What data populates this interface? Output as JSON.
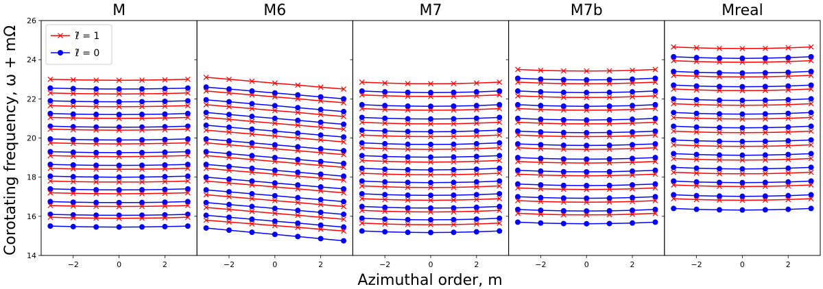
{
  "figure": {
    "xlabel": "Azimuthal order, m",
    "ylabel": "Corotating frequency, ω + mΩ"
  },
  "chart_data": {
    "type": "line",
    "ylim": [
      14,
      26
    ],
    "xlim": [
      -3.4,
      3.4
    ],
    "yticks": [
      14,
      16,
      18,
      20,
      22,
      24,
      26
    ],
    "xticks": [
      -2,
      0,
      2
    ],
    "x": [
      -3,
      -2,
      -1,
      0,
      1,
      2,
      3
    ],
    "legend": {
      "position": "top-left",
      "entries": [
        {
          "name": "ℓ̃ = 1",
          "color": "#ff0000",
          "marker": "x"
        },
        {
          "name": "ℓ̃ = 0",
          "color": "#0000ff",
          "marker": "o"
        }
      ]
    },
    "panels": [
      {
        "title": "M",
        "series": [
          {
            "l": 1,
            "start": 23.0,
            "end": 23.0,
            "curve": -0.05
          },
          {
            "l": 0,
            "start": 22.55,
            "end": 22.55,
            "curve": -0.05
          },
          {
            "l": 1,
            "start": 22.3,
            "end": 22.3,
            "curve": -0.05
          },
          {
            "l": 0,
            "start": 21.9,
            "end": 21.9,
            "curve": -0.05
          },
          {
            "l": 1,
            "start": 21.65,
            "end": 21.65,
            "curve": -0.05
          },
          {
            "l": 0,
            "start": 21.25,
            "end": 21.25,
            "curve": -0.05
          },
          {
            "l": 1,
            "start": 21.05,
            "end": 21.05,
            "curve": -0.05
          },
          {
            "l": 0,
            "start": 20.6,
            "end": 20.6,
            "curve": -0.05
          },
          {
            "l": 1,
            "start": 20.45,
            "end": 20.45,
            "curve": -0.05
          },
          {
            "l": 0,
            "start": 19.95,
            "end": 19.95,
            "curve": -0.05
          },
          {
            "l": 1,
            "start": 19.75,
            "end": 19.75,
            "curve": -0.05
          },
          {
            "l": 0,
            "start": 19.3,
            "end": 19.3,
            "curve": -0.05
          },
          {
            "l": 1,
            "start": 19.1,
            "end": 19.1,
            "curve": -0.05
          },
          {
            "l": 0,
            "start": 18.65,
            "end": 18.65,
            "curve": -0.05
          },
          {
            "l": 1,
            "start": 18.45,
            "end": 18.45,
            "curve": -0.05
          },
          {
            "l": 0,
            "start": 18.05,
            "end": 18.05,
            "curve": -0.05
          },
          {
            "l": 1,
            "start": 17.8,
            "end": 17.8,
            "curve": -0.05
          },
          {
            "l": 0,
            "start": 17.4,
            "end": 17.4,
            "curve": -0.05
          },
          {
            "l": 1,
            "start": 17.2,
            "end": 17.2,
            "curve": -0.05
          },
          {
            "l": 0,
            "start": 16.75,
            "end": 16.75,
            "curve": -0.05
          },
          {
            "l": 1,
            "start": 16.55,
            "end": 16.55,
            "curve": -0.05
          },
          {
            "l": 0,
            "start": 16.1,
            "end": 16.1,
            "curve": -0.05
          },
          {
            "l": 1,
            "start": 15.95,
            "end": 15.95,
            "curve": -0.05
          },
          {
            "l": 0,
            "start": 15.5,
            "end": 15.5,
            "curve": -0.05
          }
        ]
      },
      {
        "title": "M6",
        "series": [
          {
            "l": 1,
            "start": 23.1,
            "end": 22.5,
            "curve": 0
          },
          {
            "l": 0,
            "start": 22.6,
            "end": 22.0,
            "curve": 0
          },
          {
            "l": 1,
            "start": 22.4,
            "end": 21.8,
            "curve": 0
          },
          {
            "l": 0,
            "start": 21.95,
            "end": 21.35,
            "curve": 0
          },
          {
            "l": 1,
            "start": 21.7,
            "end": 21.1,
            "curve": 0
          },
          {
            "l": 0,
            "start": 21.3,
            "end": 20.7,
            "curve": 0
          },
          {
            "l": 1,
            "start": 21.05,
            "end": 20.45,
            "curve": 0
          },
          {
            "l": 0,
            "start": 20.65,
            "end": 20.05,
            "curve": 0
          },
          {
            "l": 1,
            "start": 20.4,
            "end": 19.8,
            "curve": 0
          },
          {
            "l": 0,
            "start": 19.95,
            "end": 19.35,
            "curve": 0
          },
          {
            "l": 1,
            "start": 19.75,
            "end": 19.15,
            "curve": 0
          },
          {
            "l": 0,
            "start": 19.3,
            "end": 18.7,
            "curve": 0
          },
          {
            "l": 1,
            "start": 19.1,
            "end": 18.5,
            "curve": 0
          },
          {
            "l": 0,
            "start": 18.65,
            "end": 18.05,
            "curve": 0
          },
          {
            "l": 1,
            "start": 18.45,
            "end": 17.85,
            "curve": 0
          },
          {
            "l": 0,
            "start": 18.0,
            "end": 17.4,
            "curve": 0
          },
          {
            "l": 1,
            "start": 17.8,
            "end": 17.2,
            "curve": 0
          },
          {
            "l": 0,
            "start": 17.35,
            "end": 16.75,
            "curve": 0
          },
          {
            "l": 1,
            "start": 17.1,
            "end": 16.5,
            "curve": 0
          },
          {
            "l": 0,
            "start": 16.7,
            "end": 16.1,
            "curve": 0
          },
          {
            "l": 1,
            "start": 16.45,
            "end": 15.85,
            "curve": 0
          },
          {
            "l": 0,
            "start": 16.05,
            "end": 15.45,
            "curve": 0
          },
          {
            "l": 1,
            "start": 15.8,
            "end": 15.25,
            "curve": 0
          },
          {
            "l": 0,
            "start": 15.4,
            "end": 14.75,
            "curve": 0
          }
        ]
      },
      {
        "title": "M7",
        "series": [
          {
            "l": 1,
            "start": 22.85,
            "end": 22.85,
            "curve": -0.08
          },
          {
            "l": 0,
            "start": 22.4,
            "end": 22.4,
            "curve": -0.08
          },
          {
            "l": 1,
            "start": 22.2,
            "end": 22.2,
            "curve": -0.08
          },
          {
            "l": 0,
            "start": 21.7,
            "end": 21.7,
            "curve": -0.08
          },
          {
            "l": 1,
            "start": 21.5,
            "end": 21.5,
            "curve": -0.08
          },
          {
            "l": 0,
            "start": 21.05,
            "end": 21.05,
            "curve": -0.08
          },
          {
            "l": 1,
            "start": 20.8,
            "end": 20.8,
            "curve": -0.08
          },
          {
            "l": 0,
            "start": 20.4,
            "end": 20.4,
            "curve": -0.08
          },
          {
            "l": 1,
            "start": 20.15,
            "end": 20.15,
            "curve": -0.08
          },
          {
            "l": 0,
            "start": 19.75,
            "end": 19.75,
            "curve": -0.08
          },
          {
            "l": 1,
            "start": 19.5,
            "end": 19.5,
            "curve": -0.08
          },
          {
            "l": 0,
            "start": 19.1,
            "end": 19.1,
            "curve": -0.08
          },
          {
            "l": 1,
            "start": 18.85,
            "end": 18.85,
            "curve": -0.08
          },
          {
            "l": 0,
            "start": 18.45,
            "end": 18.45,
            "curve": -0.08
          },
          {
            "l": 1,
            "start": 18.2,
            "end": 18.2,
            "curve": -0.08
          },
          {
            "l": 0,
            "start": 17.8,
            "end": 17.8,
            "curve": -0.08
          },
          {
            "l": 1,
            "start": 17.55,
            "end": 17.55,
            "curve": -0.08
          },
          {
            "l": 0,
            "start": 17.15,
            "end": 17.15,
            "curve": -0.08
          },
          {
            "l": 1,
            "start": 16.9,
            "end": 16.9,
            "curve": -0.08
          },
          {
            "l": 0,
            "start": 16.5,
            "end": 16.5,
            "curve": -0.08
          },
          {
            "l": 1,
            "start": 16.3,
            "end": 16.3,
            "curve": -0.08
          },
          {
            "l": 0,
            "start": 15.9,
            "end": 15.9,
            "curve": -0.08
          },
          {
            "l": 1,
            "start": 15.65,
            "end": 15.65,
            "curve": -0.08
          },
          {
            "l": 0,
            "start": 15.25,
            "end": 15.25,
            "curve": -0.08
          }
        ]
      },
      {
        "title": "M7b",
        "series": [
          {
            "l": 1,
            "start": 23.5,
            "end": 23.5,
            "curve": -0.08
          },
          {
            "l": 0,
            "start": 23.05,
            "end": 23.05,
            "curve": -0.08
          },
          {
            "l": 1,
            "start": 22.85,
            "end": 22.85,
            "curve": -0.08
          },
          {
            "l": 0,
            "start": 22.4,
            "end": 22.4,
            "curve": -0.08
          },
          {
            "l": 1,
            "start": 22.15,
            "end": 22.15,
            "curve": -0.08
          },
          {
            "l": 0,
            "start": 21.7,
            "end": 21.7,
            "curve": -0.08
          },
          {
            "l": 1,
            "start": 21.5,
            "end": 21.5,
            "curve": -0.08
          },
          {
            "l": 0,
            "start": 21.0,
            "end": 21.0,
            "curve": -0.08
          },
          {
            "l": 1,
            "start": 20.8,
            "end": 20.8,
            "curve": -0.08
          },
          {
            "l": 0,
            "start": 20.35,
            "end": 20.35,
            "curve": -0.08
          },
          {
            "l": 1,
            "start": 20.15,
            "end": 20.15,
            "curve": -0.08
          },
          {
            "l": 0,
            "start": 19.7,
            "end": 19.7,
            "curve": -0.08
          },
          {
            "l": 1,
            "start": 19.5,
            "end": 19.5,
            "curve": -0.08
          },
          {
            "l": 0,
            "start": 19.0,
            "end": 19.0,
            "curve": -0.08
          },
          {
            "l": 1,
            "start": 18.8,
            "end": 18.8,
            "curve": -0.08
          },
          {
            "l": 0,
            "start": 18.35,
            "end": 18.35,
            "curve": -0.08
          },
          {
            "l": 1,
            "start": 18.15,
            "end": 18.15,
            "curve": -0.08
          },
          {
            "l": 0,
            "start": 17.65,
            "end": 17.65,
            "curve": -0.08
          },
          {
            "l": 1,
            "start": 17.45,
            "end": 17.45,
            "curve": -0.08
          },
          {
            "l": 0,
            "start": 17.0,
            "end": 17.0,
            "curve": -0.08
          },
          {
            "l": 1,
            "start": 16.8,
            "end": 16.8,
            "curve": -0.08
          },
          {
            "l": 0,
            "start": 16.35,
            "end": 16.35,
            "curve": -0.08
          },
          {
            "l": 1,
            "start": 16.15,
            "end": 16.15,
            "curve": -0.08
          },
          {
            "l": 0,
            "start": 15.7,
            "end": 15.7,
            "curve": -0.08
          }
        ]
      },
      {
        "title": "Mreal",
        "series": [
          {
            "l": 1,
            "start": 24.65,
            "end": 24.65,
            "curve": -0.08
          },
          {
            "l": 0,
            "start": 24.15,
            "end": 24.15,
            "curve": -0.08
          },
          {
            "l": 1,
            "start": 23.95,
            "end": 23.95,
            "curve": -0.08
          },
          {
            "l": 0,
            "start": 23.4,
            "end": 23.4,
            "curve": -0.08
          },
          {
            "l": 1,
            "start": 23.2,
            "end": 23.2,
            "curve": -0.08
          },
          {
            "l": 0,
            "start": 22.7,
            "end": 22.7,
            "curve": -0.08
          },
          {
            "l": 1,
            "start": 22.5,
            "end": 22.5,
            "curve": -0.08
          },
          {
            "l": 0,
            "start": 22.0,
            "end": 22.0,
            "curve": -0.08
          },
          {
            "l": 1,
            "start": 21.75,
            "end": 21.75,
            "curve": -0.08
          },
          {
            "l": 0,
            "start": 21.3,
            "end": 21.3,
            "curve": -0.08
          },
          {
            "l": 1,
            "start": 21.05,
            "end": 21.05,
            "curve": -0.08
          },
          {
            "l": 0,
            "start": 20.6,
            "end": 20.6,
            "curve": -0.08
          },
          {
            "l": 1,
            "start": 20.35,
            "end": 20.35,
            "curve": -0.08
          },
          {
            "l": 0,
            "start": 19.9,
            "end": 19.9,
            "curve": -0.08
          },
          {
            "l": 1,
            "start": 19.65,
            "end": 19.65,
            "curve": -0.08
          },
          {
            "l": 0,
            "start": 19.2,
            "end": 19.2,
            "curve": -0.08
          },
          {
            "l": 1,
            "start": 18.95,
            "end": 18.95,
            "curve": -0.08
          },
          {
            "l": 0,
            "start": 18.5,
            "end": 18.5,
            "curve": -0.08
          },
          {
            "l": 1,
            "start": 18.25,
            "end": 18.25,
            "curve": -0.08
          },
          {
            "l": 0,
            "start": 17.8,
            "end": 17.8,
            "curve": -0.08
          },
          {
            "l": 1,
            "start": 17.6,
            "end": 17.6,
            "curve": -0.08
          },
          {
            "l": 0,
            "start": 17.1,
            "end": 17.1,
            "curve": -0.08
          },
          {
            "l": 1,
            "start": 16.9,
            "end": 16.9,
            "curve": -0.08
          },
          {
            "l": 0,
            "start": 16.4,
            "end": 16.4,
            "curve": -0.08
          }
        ]
      }
    ]
  }
}
